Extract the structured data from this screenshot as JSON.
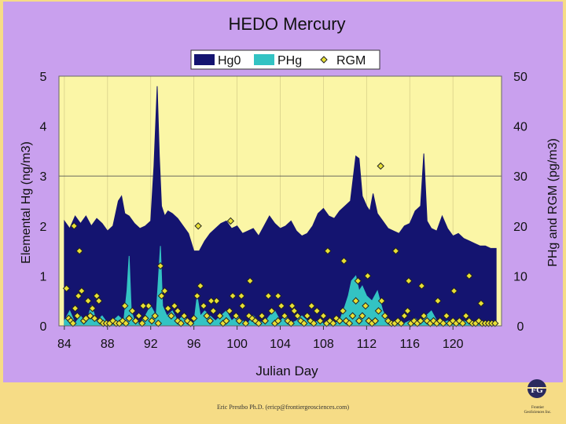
{
  "chart_data": {
    "type": "area+scatter",
    "title": "HEDO Mercury",
    "xlabel": "Julian Day",
    "ylabel_left": "Elemental Hg (ng/m3)",
    "ylabel_right": "PHg and RGM (pg/m3)",
    "xlim": [
      83.5,
      124.5
    ],
    "ylim_left": [
      0,
      5
    ],
    "ylim_right": [
      0,
      50
    ],
    "x_ticks": [
      84,
      88,
      92,
      96,
      100,
      104,
      108,
      112,
      116,
      120
    ],
    "y_ticks_left": [
      0,
      1,
      2,
      3,
      4,
      5
    ],
    "y_ticks_right": [
      0,
      10,
      20,
      30,
      40,
      50
    ],
    "legend": [
      "Hg0",
      "PHg",
      "RGM"
    ],
    "legend_position": "top-center",
    "series": [
      {
        "name": "Hg0",
        "axis": "left",
        "kind": "area",
        "color": "#141470",
        "x": [
          84,
          84.5,
          85,
          85.5,
          86,
          86.5,
          87,
          87.5,
          88,
          88.5,
          89,
          89.3,
          89.6,
          90,
          90.5,
          91,
          91.5,
          92,
          92.3,
          92.6,
          92.8,
          93,
          93.3,
          93.6,
          94,
          94.5,
          95,
          95.5,
          96,
          96.5,
          97,
          97.5,
          98,
          98.5,
          99,
          99.5,
          100,
          100.5,
          101,
          101.5,
          102,
          102.5,
          103,
          103.5,
          104,
          104.5,
          105,
          105.5,
          106,
          106.5,
          107,
          107.5,
          108,
          108.5,
          109,
          109.5,
          110,
          110.5,
          111,
          111.3,
          111.6,
          112,
          112.3,
          112.6,
          113,
          113.5,
          114,
          114.5,
          115,
          115.5,
          116,
          116.5,
          117,
          117.3,
          117.6,
          118,
          118.5,
          119,
          119.5,
          120,
          120.5,
          121,
          121.5,
          122,
          122.5,
          123,
          123.5,
          124
        ],
        "values": [
          2.1,
          1.95,
          2.2,
          2.05,
          2.2,
          2.0,
          2.15,
          2.05,
          1.9,
          2.0,
          2.5,
          2.6,
          2.25,
          2.2,
          2.05,
          1.95,
          2.0,
          2.1,
          3.2,
          4.8,
          3.4,
          2.4,
          2.2,
          2.3,
          2.25,
          2.15,
          2.0,
          1.85,
          1.5,
          1.5,
          1.7,
          1.85,
          1.95,
          2.05,
          2.1,
          1.95,
          2.0,
          1.85,
          1.9,
          1.95,
          1.8,
          2.0,
          2.2,
          2.05,
          1.95,
          2.0,
          2.1,
          1.9,
          1.8,
          1.85,
          2.0,
          2.25,
          2.35,
          2.2,
          2.15,
          2.3,
          2.4,
          2.5,
          3.4,
          3.35,
          2.6,
          2.4,
          2.3,
          2.65,
          2.25,
          2.1,
          1.95,
          1.9,
          1.85,
          2.0,
          2.05,
          2.3,
          2.4,
          3.45,
          2.1,
          1.95,
          1.9,
          2.2,
          1.95,
          1.8,
          1.85,
          1.75,
          1.7,
          1.65,
          1.6,
          1.6,
          1.55,
          1.55
        ]
      },
      {
        "name": "PHg",
        "axis": "right",
        "kind": "area",
        "color": "#33c3c3",
        "x": [
          84,
          84.5,
          85,
          85.5,
          86,
          86.5,
          87,
          87.5,
          88,
          88.5,
          89,
          89.5,
          89.8,
          90,
          90.2,
          90.5,
          91,
          91.5,
          92,
          92.5,
          92.9,
          93.1,
          93.5,
          94,
          94.5,
          95,
          95.5,
          96,
          96.3,
          96.6,
          97,
          97.5,
          98,
          98.5,
          99,
          99.5,
          100,
          100.5,
          101,
          101.5,
          102,
          102.5,
          103,
          103.5,
          104,
          104.5,
          105,
          105.5,
          106,
          106.5,
          107,
          107.5,
          108,
          108.5,
          109,
          109.5,
          110,
          110.3,
          110.6,
          111,
          111.3,
          111.6,
          112,
          112.5,
          113,
          113.5,
          114,
          114.5,
          115,
          115.5,
          116,
          116.5,
          117,
          117.5,
          118,
          118.5,
          119,
          119.5,
          120,
          120.5,
          121,
          121.5,
          122,
          122.5,
          123,
          123.5,
          124
        ],
        "values": [
          1,
          3,
          0.5,
          2,
          0.5,
          4,
          1,
          2,
          0.5,
          1,
          2,
          1,
          7,
          14,
          3,
          1,
          0.5,
          2,
          4,
          2,
          16,
          4,
          2,
          3,
          1,
          2,
          1,
          0.5,
          6,
          2,
          3,
          2,
          1,
          2,
          3,
          1,
          2,
          1,
          0.5,
          2,
          1,
          0.5,
          2,
          3,
          1,
          2,
          0.5,
          1,
          2,
          1,
          0.5,
          1,
          0.5,
          1,
          0.5,
          1,
          4,
          6,
          9,
          10,
          7,
          8,
          6,
          5,
          7,
          3,
          1,
          0.5,
          1,
          0.5,
          1,
          1.5,
          0.5,
          2,
          3,
          1,
          0.5,
          1,
          0.5,
          0.5,
          1,
          0.5,
          0.5,
          1,
          0.5,
          0.5,
          0.5
        ]
      },
      {
        "name": "RGM",
        "axis": "right",
        "kind": "scatter",
        "color": "#e8e035",
        "x": [
          84.2,
          84.4,
          84.6,
          84.8,
          85.0,
          85.2,
          85.4,
          85.6,
          85.8,
          86.0,
          86.2,
          86.4,
          86.6,
          86.8,
          87.0,
          87.3,
          87.6,
          87.9,
          88.2,
          88.5,
          88.8,
          89.1,
          89.4,
          89.7,
          90.0,
          90.3,
          90.6,
          90.9,
          91.2,
          91.5,
          91.8,
          92.1,
          92.4,
          92.7,
          93.0,
          93.3,
          93.6,
          93.9,
          94.2,
          94.5,
          94.8,
          95.1,
          95.4,
          95.7,
          96.0,
          96.3,
          96.6,
          96.9,
          97.2,
          97.5,
          97.8,
          98.1,
          98.4,
          98.7,
          99.0,
          99.3,
          99.6,
          99.9,
          100.2,
          100.5,
          100.8,
          101.1,
          101.4,
          101.7,
          102.0,
          102.3,
          102.6,
          102.9,
          103.2,
          103.5,
          103.8,
          104.1,
          104.4,
          104.7,
          105.0,
          105.3,
          105.6,
          105.9,
          106.2,
          106.5,
          106.8,
          107.1,
          107.4,
          107.7,
          108.0,
          108.3,
          108.6,
          108.9,
          109.2,
          109.5,
          109.8,
          110.1,
          110.4,
          110.7,
          111.0,
          111.3,
          111.6,
          111.9,
          112.2,
          112.5,
          112.8,
          113.1,
          113.4,
          113.7,
          114.0,
          114.3,
          114.6,
          114.9,
          115.2,
          115.5,
          115.8,
          116.1,
          116.4,
          116.7,
          117.0,
          117.3,
          117.6,
          117.9,
          118.2,
          118.5,
          118.8,
          119.1,
          119.4,
          119.7,
          120.0,
          120.3,
          120.6,
          120.9,
          121.2,
          121.5,
          121.8,
          122.1,
          122.4,
          122.7,
          123.0,
          123.3,
          123.6,
          123.9,
          84.9,
          85.3,
          87.2,
          89.6,
          91.3,
          92.9,
          94.5,
          96.4,
          97.6,
          99.4,
          100.4,
          101.2,
          103.8,
          105.1,
          106.9,
          108.4,
          109.9,
          111.2,
          112.1,
          113.3,
          114.7,
          115.9,
          117.1,
          118.6,
          120.1,
          121.5,
          122.6
        ],
        "values": [
          7.5,
          1.5,
          1,
          0.5,
          3.5,
          2,
          15,
          7,
          1,
          1.5,
          5,
          2,
          3.5,
          1.5,
          6,
          1,
          0.5,
          0.5,
          0.5,
          1,
          0.5,
          0.5,
          1,
          0.5,
          1.5,
          3,
          1,
          2,
          0.5,
          1.5,
          4,
          1,
          2,
          0.5,
          6,
          7,
          3.5,
          2,
          4,
          1,
          0.5,
          2,
          1,
          0.5,
          1.5,
          6,
          8,
          4,
          2,
          1,
          3,
          5,
          2,
          0.5,
          1,
          3,
          6,
          2,
          1,
          4,
          0.5,
          2,
          1.5,
          1,
          0.5,
          2,
          1,
          6,
          3,
          0.5,
          1,
          4,
          2,
          1,
          0.5,
          3,
          2,
          1,
          0.5,
          2,
          1,
          0.5,
          3,
          1,
          2,
          0.5,
          1,
          0.5,
          1.5,
          1,
          3,
          1,
          0.5,
          2,
          5,
          1,
          2,
          4,
          1,
          0.5,
          1,
          3,
          5,
          2,
          1,
          0.5,
          0.5,
          1,
          0.5,
          2,
          3,
          0.5,
          1,
          0.5,
          1,
          2,
          1,
          0.5,
          1,
          0.5,
          1,
          0.5,
          2,
          0.5,
          1,
          0.5,
          1,
          0.5,
          2,
          1,
          0.5,
          0.5,
          1,
          0.5,
          0.5,
          0.5,
          0.5,
          0.5,
          20,
          6,
          5,
          4,
          4,
          12,
          3,
          20,
          5,
          21,
          6,
          9,
          6,
          4,
          4,
          15,
          13,
          9,
          10,
          32,
          15,
          9,
          8,
          5,
          7,
          10,
          4.5
        ]
      }
    ]
  },
  "footer_text": "Eric Prestbo Ph.D. (ericp@frontiergeosciences.com)",
  "logo": {
    "mark": "FG",
    "name": "Frontier",
    "subname": "GeoSciences Inc."
  }
}
